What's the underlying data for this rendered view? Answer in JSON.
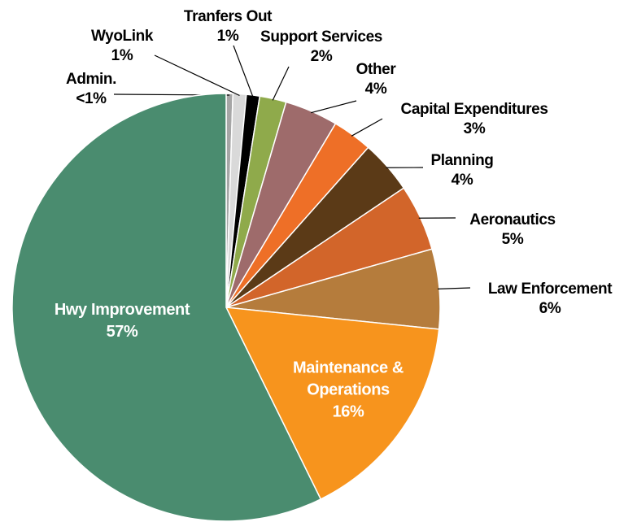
{
  "chart_data": {
    "type": "pie",
    "categories": [
      "Admin.",
      "WyoLink",
      "Tranfers Out",
      "Support Services",
      "Other",
      "Capital Expenditures",
      "Planning",
      "Aeronautics",
      "Law Enforcement",
      "Maintenance & Operations",
      "Hwy Improvement"
    ],
    "values": [
      0.5,
      1,
      1,
      2,
      4,
      3,
      4,
      5,
      6,
      16,
      57
    ],
    "value_labels": [
      "<1%",
      "1%",
      "1%",
      "2%",
      "4%",
      "3%",
      "4%",
      "5%",
      "6%",
      "16%",
      "57%"
    ],
    "colors": [
      "#a6a6a6",
      "#d9d9d9",
      "#000000",
      "#8faa4b",
      "#9e6b6b",
      "#ee6f27",
      "#5b3a17",
      "#d2652a",
      "#b57c3c",
      "#f7941d",
      "#4a8c6f"
    ]
  }
}
